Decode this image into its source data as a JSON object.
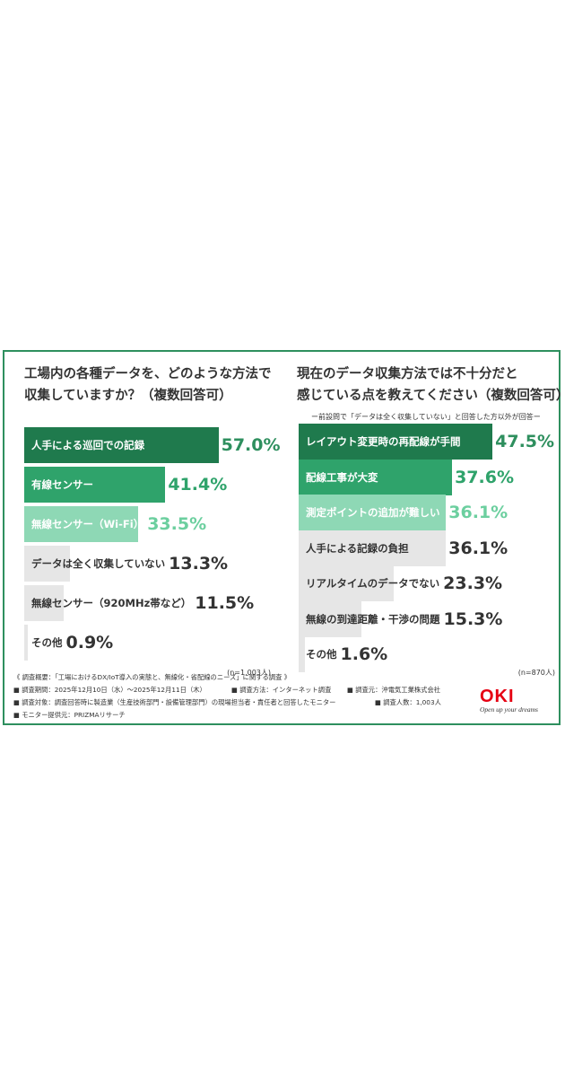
{
  "chart_data": [
    {
      "type": "bar",
      "orientation": "horizontal",
      "title_line1": "工場内の各種データを、どのような方法で",
      "title_line2": "収集していますか？（複数回答可）",
      "categories": [
        "人手による巡回での記録",
        "有線センサー",
        "無線センサー（Wi-Fi）",
        "データは全く収集していない",
        "無線センサー（920MHz帯など）",
        "その他"
      ],
      "values": [
        57.0,
        41.4,
        33.5,
        13.3,
        11.5,
        0.9
      ],
      "value_labels": [
        "57.0%",
        "41.4%",
        "33.5%",
        "13.3%",
        "11.5%",
        "0.9%"
      ],
      "n_label": "(n=1,003人)",
      "colors": [
        "#1f7a4d",
        "#2fa36b",
        "#8ed8b5",
        "#e6e6e6",
        "#e6e6e6",
        "#e6e6e6"
      ]
    },
    {
      "type": "bar",
      "orientation": "horizontal",
      "title_line1": "現在のデータ収集方法では不十分だと",
      "title_line2": "感じている点を教えてください（複数回答可）",
      "subtitle": "ー前設問で「データは全く収集していない」と回答した方以外が回答ー",
      "categories": [
        "レイアウト変更時の再配線が手間",
        "配線工事が大変",
        "測定ポイントの追加が難しい",
        "人手による記録の負担",
        "リアルタイムのデータでない",
        "無線の到達距離・干渉の問題",
        "その他"
      ],
      "values": [
        47.5,
        37.6,
        36.1,
        36.1,
        23.3,
        15.3,
        1.6
      ],
      "value_labels": [
        "47.5%",
        "37.6%",
        "36.1%",
        "36.1%",
        "23.3%",
        "15.3%",
        "1.6%"
      ],
      "n_label": "(n=870人)",
      "colors": [
        "#1f7a4d",
        "#2fa36b",
        "#8ed8b5",
        "#e6e6e6",
        "#e6e6e6",
        "#e6e6e6",
        "#e6e6e6"
      ]
    }
  ],
  "footer": {
    "line1": "《 調査概要：「工場におけるDX/IoT導入の実態と、無線化・省配線のニーズ」に関する調査 》",
    "period": "■ 調査期間：2025年12月10日（水）〜2025年12月11日（木）",
    "method": "■ 調査方法：インターネット調査",
    "sponsor": "■ 調査元：沖電気工業株式会社",
    "target": "■ 調査対象：調査回答時に製造業（生産技術部門・設備管理部門）の現場担当者・責任者と回答したモニター",
    "count": "■ 調査人数：1,003人",
    "monitor": "■ モニター提供元：PRIZMAリサーチ"
  },
  "logo": {
    "mark": "OKI",
    "tagline": "Open up your dreams"
  }
}
